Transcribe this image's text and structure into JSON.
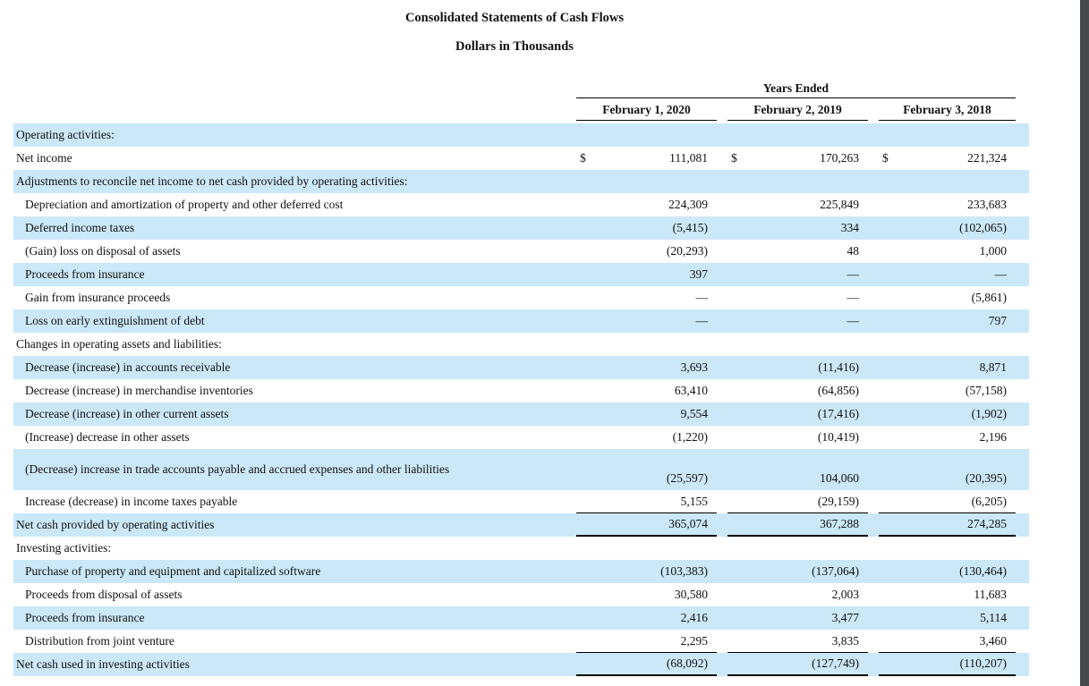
{
  "document": {
    "title": "Consolidated Statements of Cash Flows",
    "subtitle": "Dollars in Thousands",
    "table": {
      "period_header": "Years Ended",
      "currency_symbol": "$",
      "columns": [
        "February 1, 2020",
        "February 2, 2019",
        "February 3, 2018"
      ],
      "rows": [
        {
          "label": "Operating activities:",
          "indent": 0,
          "shaded": true,
          "dollar": false,
          "values": [
            "",
            "",
            ""
          ]
        },
        {
          "label": "Net income",
          "indent": 0,
          "shaded": false,
          "dollar": true,
          "values": [
            "111,081",
            "170,263",
            "221,324"
          ]
        },
        {
          "label": "Adjustments to reconcile net income to net cash provided by operating activities:",
          "indent": 0,
          "shaded": true,
          "dollar": false,
          "values": [
            "",
            "",
            ""
          ]
        },
        {
          "label": "Depreciation and amortization of property and other deferred cost",
          "indent": 1,
          "shaded": false,
          "dollar": false,
          "values": [
            "224,309",
            "225,849",
            "233,683"
          ]
        },
        {
          "label": "Deferred income taxes",
          "indent": 1,
          "shaded": true,
          "dollar": false,
          "values": [
            "(5,415)",
            "334",
            "(102,065)"
          ]
        },
        {
          "label": "(Gain) loss on disposal of assets",
          "indent": 1,
          "shaded": false,
          "dollar": false,
          "values": [
            "(20,293)",
            "48",
            "1,000"
          ]
        },
        {
          "label": "Proceeds from insurance",
          "indent": 1,
          "shaded": true,
          "dollar": false,
          "values": [
            "397",
            "—",
            "—"
          ]
        },
        {
          "label": "Gain from insurance proceeds",
          "indent": 1,
          "shaded": false,
          "dollar": false,
          "values": [
            "—",
            "—",
            "(5,861)"
          ]
        },
        {
          "label": "Loss on early extinguishment of debt",
          "indent": 1,
          "shaded": true,
          "dollar": false,
          "values": [
            "—",
            "—",
            "797"
          ]
        },
        {
          "label": "Changes in operating assets and liabilities:",
          "indent": 0,
          "shaded": false,
          "dollar": false,
          "values": [
            "",
            "",
            ""
          ]
        },
        {
          "label": "Decrease (increase) in accounts receivable",
          "indent": 1,
          "shaded": true,
          "dollar": false,
          "values": [
            "3,693",
            "(11,416)",
            "8,871"
          ]
        },
        {
          "label": "Decrease (increase) in merchandise inventories",
          "indent": 1,
          "shaded": false,
          "dollar": false,
          "values": [
            "63,410",
            "(64,856)",
            "(57,158)"
          ]
        },
        {
          "label": "Decrease (increase) in other current assets",
          "indent": 1,
          "shaded": true,
          "dollar": false,
          "values": [
            "9,554",
            "(17,416)",
            "(1,902)"
          ]
        },
        {
          "label": "(Increase) decrease in other assets",
          "indent": 1,
          "shaded": false,
          "dollar": false,
          "values": [
            "(1,220)",
            "(10,419)",
            "2,196"
          ]
        },
        {
          "label": "(Decrease) increase in trade accounts payable and accrued expenses and other liabilities",
          "indent": 1,
          "shaded": true,
          "dollar": false,
          "wrap": true,
          "values": [
            "(25,597)",
            "104,060",
            "(20,395)"
          ]
        },
        {
          "label": "Increase (decrease) in income taxes payable",
          "indent": 1,
          "shaded": false,
          "dollar": false,
          "values": [
            "5,155",
            "(29,159)",
            "(6,205)"
          ],
          "rule_below": "single"
        },
        {
          "label": "Net cash provided by operating activities",
          "indent": 0,
          "shaded": true,
          "dollar": false,
          "values": [
            "365,074",
            "367,288",
            "274,285"
          ],
          "rule_below": "heavy"
        },
        {
          "label": "Investing activities:",
          "indent": 0,
          "shaded": false,
          "dollar": false,
          "values": [
            "",
            "",
            ""
          ]
        },
        {
          "label": "Purchase of property and equipment and capitalized software",
          "indent": 1,
          "shaded": true,
          "dollar": false,
          "values": [
            "(103,383)",
            "(137,064)",
            "(130,464)"
          ]
        },
        {
          "label": "Proceeds from disposal of assets",
          "indent": 1,
          "shaded": false,
          "dollar": false,
          "values": [
            "30,580",
            "2,003",
            "11,683"
          ]
        },
        {
          "label": "Proceeds from insurance",
          "indent": 1,
          "shaded": true,
          "dollar": false,
          "values": [
            "2,416",
            "3,477",
            "5,114"
          ]
        },
        {
          "label": "Distribution from joint venture",
          "indent": 1,
          "shaded": false,
          "dollar": false,
          "values": [
            "2,295",
            "3,835",
            "3,460"
          ],
          "rule_below": "single"
        },
        {
          "label": "Net cash used in investing activities",
          "indent": 0,
          "shaded": true,
          "dollar": false,
          "values": [
            "(68,092)",
            "(127,749)",
            "(110,207)"
          ],
          "rule_below": "heavy"
        }
      ]
    }
  },
  "colors": {
    "row_shade": "#cbe8f8",
    "scrollbar": "#47494b",
    "rule": "#000000"
  }
}
